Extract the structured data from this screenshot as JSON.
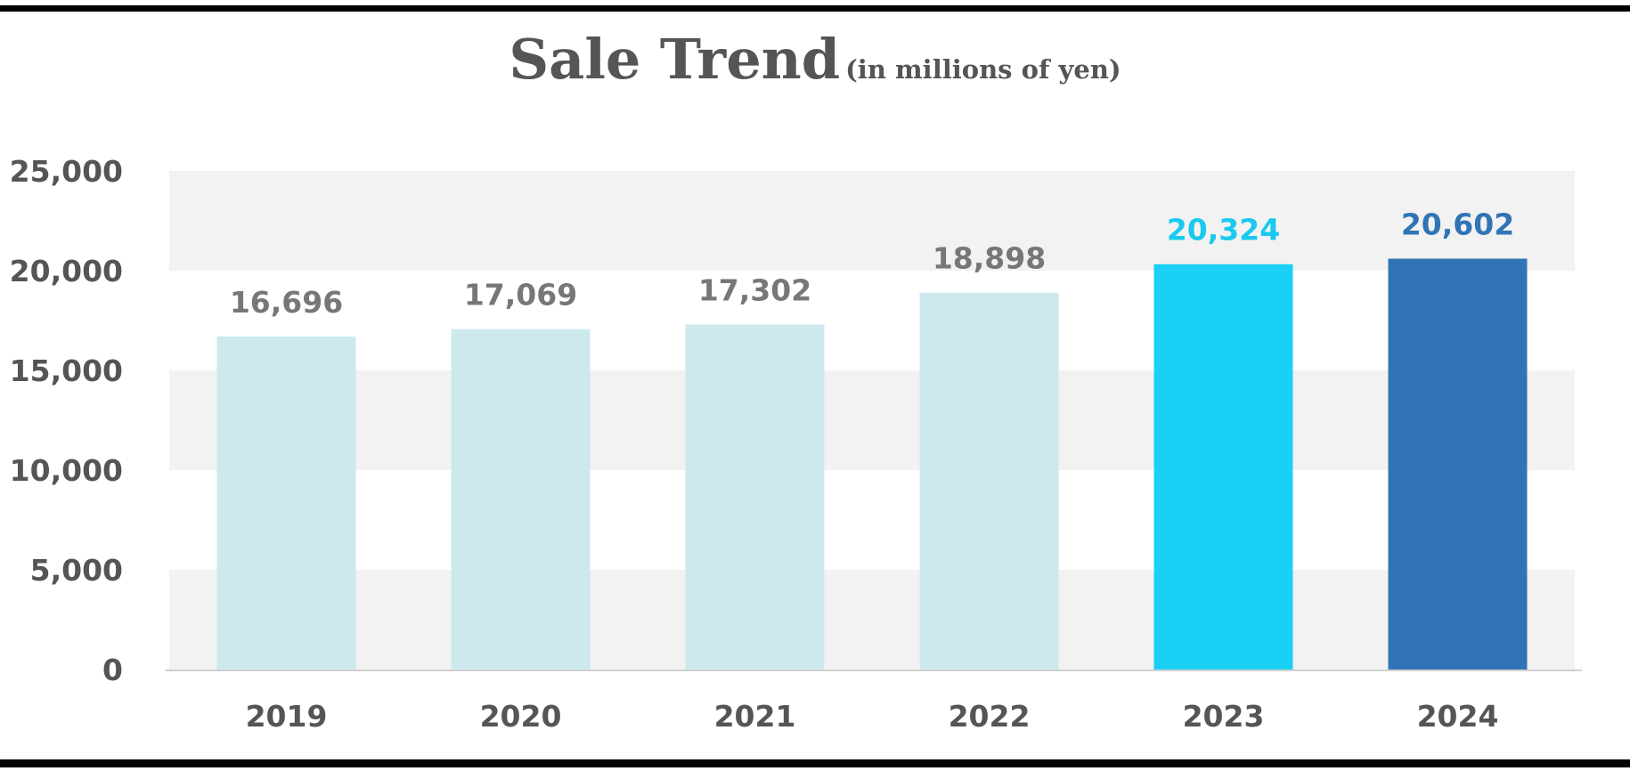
{
  "chart_data": {
    "type": "bar",
    "title": "Sale Trend",
    "subtitle": "(in millions of yen)",
    "categories": [
      "2019",
      "2020",
      "2021",
      "2022",
      "2023",
      "2024"
    ],
    "values": [
      16696,
      17069,
      17302,
      18898,
      20324,
      20602
    ],
    "value_labels": [
      "16,696",
      "17,069",
      "17,302",
      "18,898",
      "20,324",
      "20,602"
    ],
    "bar_colors": [
      "#cde9ee",
      "#cde9ee",
      "#cde9ee",
      "#cde9ee",
      "#1ad1f5",
      "#3174b5"
    ],
    "label_colors": [
      "#777777",
      "#777777",
      "#777777",
      "#777777",
      "#1ac9f0",
      "#3174b5"
    ],
    "ylim": [
      0,
      25000
    ],
    "yticks": [
      0,
      5000,
      10000,
      15000,
      20000,
      25000
    ],
    "ytick_labels": [
      "0",
      "5,000",
      "10,000",
      "15,000",
      "20,000",
      "25,000"
    ],
    "xlabel": "",
    "ylabel": "",
    "grid": "alternating horizontal bands",
    "legend": "none"
  }
}
